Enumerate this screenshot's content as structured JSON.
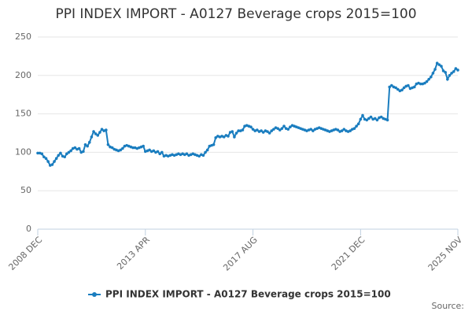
{
  "chart_data": {
    "type": "line",
    "title": "PPI INDEX IMPORT - A0127 Beverage crops 2015=100",
    "source": "Source:",
    "categories": [
      "2008 DEC",
      null,
      null,
      null,
      null,
      null,
      null,
      null,
      null,
      null,
      null,
      null,
      null,
      null,
      null,
      null,
      null,
      null,
      null,
      null,
      null,
      null,
      null,
      null,
      null,
      null,
      null,
      null,
      null,
      null,
      null,
      null,
      null,
      null,
      null,
      null,
      null,
      null,
      null,
      null,
      null,
      null,
      null,
      null,
      null,
      null,
      null,
      null,
      null,
      null,
      null,
      null,
      "2013 APR",
      null,
      null,
      null,
      null,
      null,
      null,
      null,
      null,
      null,
      null,
      null,
      null,
      null,
      null,
      null,
      null,
      null,
      null,
      null,
      null,
      null,
      null,
      null,
      null,
      null,
      null,
      null,
      null,
      null,
      null,
      null,
      null,
      null,
      null,
      null,
      null,
      null,
      null,
      null,
      null,
      null,
      null,
      null,
      null,
      null,
      null,
      null,
      null,
      null,
      null,
      null,
      "2017 AUG",
      null,
      null,
      null,
      null,
      null,
      null,
      null,
      null,
      null,
      null,
      null,
      null,
      null,
      null,
      null,
      null,
      null,
      null,
      null,
      null,
      null,
      null,
      null,
      null,
      null,
      null,
      null,
      null,
      null,
      null,
      null,
      null,
      null,
      null,
      null,
      null,
      null,
      null,
      null,
      null,
      null,
      null,
      null,
      null,
      null,
      null,
      null,
      null,
      null,
      null,
      null,
      "2021 DEC",
      null,
      null,
      null,
      null,
      null,
      null,
      null,
      null,
      null,
      null,
      null,
      null,
      null,
      null,
      null,
      null,
      null,
      null,
      null,
      null,
      null,
      null,
      null,
      null,
      null,
      null,
      null,
      null,
      null,
      null,
      null,
      null,
      null,
      null,
      null,
      null,
      null,
      null,
      null,
      null,
      null,
      null,
      null,
      null,
      null,
      null,
      "2025 NOV"
    ],
    "series": [
      {
        "name": "PPI INDEX IMPORT - A0127 Beverage crops 2015=100",
        "color": "#1a7dbf",
        "values": [
          99,
          99,
          98,
          94,
          92,
          88,
          83,
          84,
          88,
          92,
          96,
          99,
          95,
          94,
          98,
          100,
          102,
          105,
          106,
          104,
          105,
          100,
          101,
          110,
          108,
          113,
          120,
          127,
          124,
          122,
          126,
          130,
          128,
          129,
          110,
          107,
          106,
          104,
          103,
          102,
          103,
          105,
          108,
          109,
          108,
          107,
          106,
          106,
          105,
          106,
          107,
          108,
          101,
          102,
          103,
          101,
          102,
          100,
          101,
          98,
          100,
          95,
          96,
          95,
          96,
          97,
          96,
          97,
          98,
          97,
          98,
          97,
          98,
          96,
          97,
          98,
          97,
          96,
          95,
          97,
          96,
          100,
          103,
          108,
          109,
          110,
          119,
          121,
          120,
          121,
          120,
          122,
          121,
          126,
          127,
          120,
          125,
          128,
          128,
          129,
          134,
          135,
          134,
          133,
          130,
          128,
          129,
          127,
          128,
          126,
          128,
          127,
          125,
          128,
          130,
          132,
          131,
          129,
          131,
          134,
          131,
          130,
          133,
          135,
          134,
          133,
          132,
          131,
          130,
          129,
          128,
          129,
          130,
          128,
          130,
          131,
          132,
          131,
          130,
          129,
          128,
          127,
          128,
          129,
          130,
          129,
          127,
          128,
          130,
          128,
          127,
          128,
          130,
          131,
          134,
          137,
          143,
          148,
          143,
          142,
          144,
          146,
          143,
          144,
          142,
          145,
          146,
          144,
          143,
          142,
          185,
          187,
          185,
          184,
          182,
          180,
          181,
          184,
          186,
          187,
          183,
          184,
          185,
          189,
          190,
          189,
          189,
          190,
          192,
          195,
          198,
          203,
          208,
          216,
          214,
          212,
          206,
          204,
          195,
          200,
          203,
          205,
          209,
          207
        ]
      }
    ],
    "ylim": [
      0,
      250
    ],
    "yticks": [
      0,
      50,
      100,
      150,
      200,
      250
    ],
    "grid": true
  }
}
